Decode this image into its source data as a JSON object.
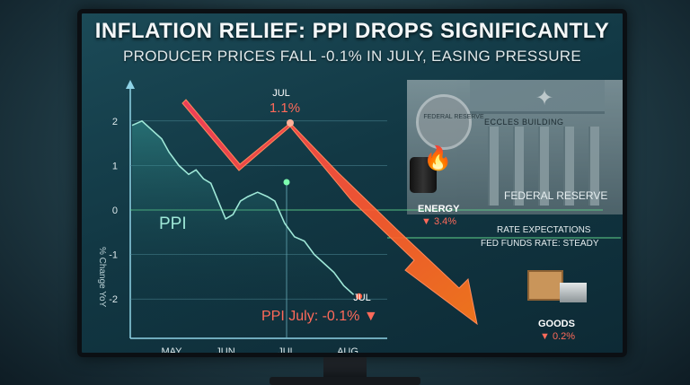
{
  "header": {
    "title": "INFLATION RELIEF: PPI DROPS SIGNIFICANTLY",
    "subtitle": "PRODUCER PRICES FALL -0.1% IN JULY, EASING PRESSURE"
  },
  "chart_data": {
    "type": "line",
    "ylabel": "% Change YoY",
    "series_label": "PPI",
    "x_ticks": [
      "MAY",
      "JUN",
      "JUL",
      "AUG"
    ],
    "y_ticks": [
      2,
      1,
      0,
      -1,
      -2
    ],
    "ylim": [
      -2.6,
      2.6
    ],
    "points": [
      [
        0.0,
        1.9
      ],
      [
        0.04,
        2.0
      ],
      [
        0.08,
        1.8
      ],
      [
        0.12,
        1.6
      ],
      [
        0.15,
        1.3
      ],
      [
        0.19,
        1.0
      ],
      [
        0.23,
        0.8
      ],
      [
        0.26,
        0.9
      ],
      [
        0.29,
        0.7
      ],
      [
        0.32,
        0.6
      ],
      [
        0.35,
        0.2
      ],
      [
        0.38,
        -0.2
      ],
      [
        0.41,
        -0.1
      ],
      [
        0.44,
        0.2
      ],
      [
        0.47,
        0.3
      ],
      [
        0.51,
        0.4
      ],
      [
        0.55,
        0.3
      ],
      [
        0.58,
        0.2
      ],
      [
        0.62,
        -0.3
      ],
      [
        0.66,
        -0.6
      ],
      [
        0.7,
        -0.7
      ],
      [
        0.74,
        -1.0
      ],
      [
        0.78,
        -1.2
      ],
      [
        0.82,
        -1.4
      ],
      [
        0.86,
        -1.7
      ],
      [
        0.9,
        -1.9
      ]
    ],
    "colors": {
      "line": "#9fe8d8",
      "arrow": "#ff5a3c",
      "accent_red": "#ff6a5a"
    },
    "annotations": {
      "peak_month": "JUL",
      "peak_value": "1.1%",
      "end_month": "JUL",
      "ppi_july": "PPI July: -0.1% ▼"
    }
  },
  "sidebar": {
    "seal_text": "FEDERAL RESERVE",
    "building_label": "ECCLES BUILDING",
    "federal_reserve": "FEDERAL RESERVE",
    "energy_label": "ENERGY",
    "energy_value": "▼ 3.4%",
    "rate_expectations": "RATE EXPECTATIONS",
    "fed_funds": "FED FUNDS RATE: STEADY",
    "goods_label": "GOODS",
    "goods_value": "▼ 0.2%"
  }
}
